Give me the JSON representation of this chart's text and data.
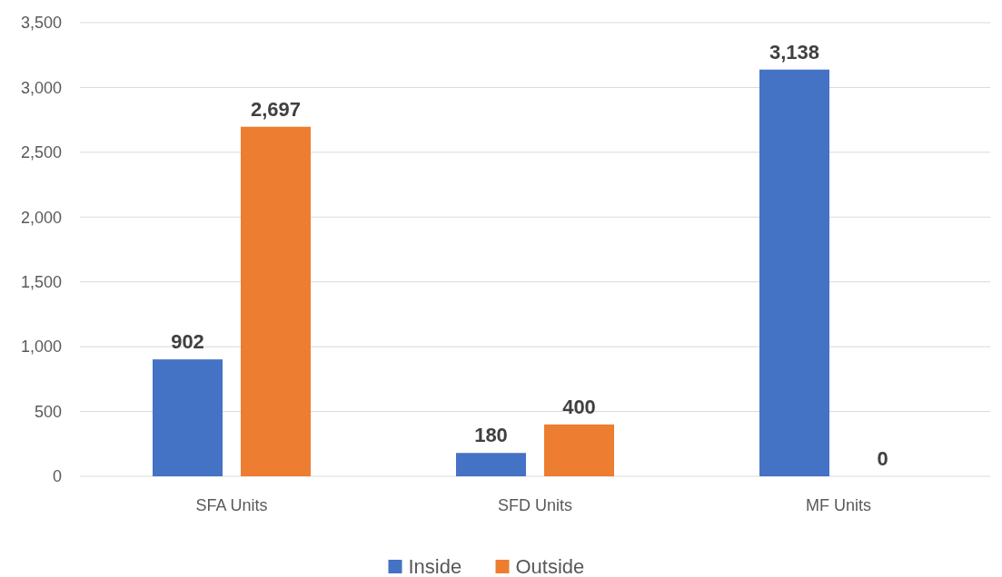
{
  "chart_data": {
    "type": "bar",
    "categories": [
      "SFA Units",
      "SFD Units",
      "MF Units"
    ],
    "series": [
      {
        "name": "Inside",
        "color": "#4472c4",
        "values": [
          902,
          180,
          3138
        ]
      },
      {
        "name": "Outside",
        "color": "#ed7d31",
        "values": [
          2697,
          400,
          0
        ]
      }
    ],
    "ylim": [
      0,
      3500
    ],
    "yticks": [
      {
        "value": 0,
        "label": "0"
      },
      {
        "value": 500,
        "label": "500"
      },
      {
        "value": 1000,
        "label": "1,000"
      },
      {
        "value": 1500,
        "label": "1,500"
      },
      {
        "value": 2000,
        "label": "2,000"
      },
      {
        "value": 2500,
        "label": "2,500"
      },
      {
        "value": 3000,
        "label": "3,000"
      },
      {
        "value": 3500,
        "label": "3,500"
      }
    ],
    "value_labels": [
      [
        "902",
        "180",
        "3,138"
      ],
      [
        "2,697",
        "400",
        "0"
      ]
    ],
    "grid": "y",
    "legend": "bottom"
  }
}
